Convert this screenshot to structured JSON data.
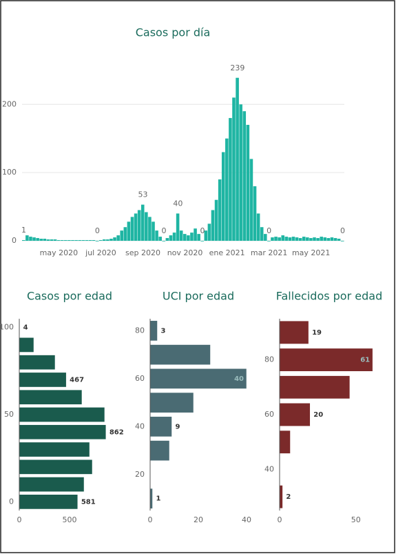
{
  "chart_data": [
    {
      "type": "bar",
      "title": "Casos por día",
      "color": "#1fb5a3",
      "grid": true,
      "categories": [
        null,
        null,
        null,
        null,
        null,
        null,
        null,
        null,
        null,
        null,
        "may 2020",
        null,
        null,
        null,
        null,
        null,
        null,
        null,
        null,
        null,
        null,
        null,
        "jul 2020",
        null,
        null,
        null,
        null,
        null,
        null,
        null,
        null,
        null,
        null,
        null,
        "sep 2020",
        null,
        null,
        null,
        null,
        null,
        null,
        null,
        null,
        null,
        null,
        null,
        "nov 2020",
        null,
        null,
        null,
        null,
        null,
        null,
        null,
        null,
        null,
        null,
        null,
        "ene 2021",
        null,
        null,
        null,
        null,
        null,
        null,
        null,
        null,
        null,
        null,
        null,
        "mar 2021",
        null,
        null,
        null,
        null,
        null,
        null,
        null,
        null,
        null,
        null,
        null,
        "may 2021",
        null,
        null,
        null,
        null,
        null,
        null,
        null,
        null,
        null
      ],
      "values": [
        1,
        8,
        6,
        5,
        4,
        3,
        3,
        2,
        2,
        2,
        1,
        1,
        1,
        1,
        1,
        1,
        1,
        1,
        1,
        1,
        1,
        0,
        1,
        2,
        2,
        3,
        5,
        8,
        15,
        20,
        28,
        35,
        40,
        45,
        53,
        42,
        35,
        28,
        15,
        6,
        0,
        4,
        8,
        12,
        40,
        15,
        10,
        8,
        12,
        18,
        10,
        0,
        15,
        25,
        45,
        60,
        90,
        130,
        150,
        180,
        210,
        239,
        200,
        190,
        170,
        120,
        80,
        40,
        20,
        10,
        0,
        5,
        6,
        5,
        8,
        6,
        5,
        6,
        5,
        4,
        6,
        5,
        4,
        5,
        4,
        6,
        5,
        4,
        5,
        4,
        3,
        0
      ],
      "value_labels": [
        "1",
        null,
        null,
        null,
        null,
        null,
        null,
        null,
        null,
        null,
        null,
        null,
        null,
        null,
        null,
        null,
        null,
        null,
        null,
        null,
        null,
        "0",
        null,
        null,
        null,
        null,
        null,
        null,
        null,
        null,
        null,
        null,
        null,
        null,
        "53",
        null,
        null,
        null,
        null,
        null,
        "0",
        null,
        null,
        null,
        "40",
        null,
        null,
        null,
        null,
        null,
        null,
        "0",
        null,
        null,
        null,
        null,
        null,
        null,
        null,
        null,
        null,
        "239",
        null,
        null,
        null,
        null,
        null,
        null,
        null,
        null,
        "0",
        null,
        null,
        null,
        null,
        null,
        null,
        null,
        null,
        null,
        null,
        null,
        null,
        null,
        null,
        null,
        null,
        null,
        null,
        null,
        null,
        "0"
      ],
      "ylim": [
        0,
        260
      ],
      "yticks": [
        0,
        100,
        200
      ]
    },
    {
      "type": "barh",
      "title": "Casos por edad",
      "color": "#1a5b4d",
      "y": [
        0,
        10,
        20,
        30,
        40,
        50,
        60,
        70,
        80,
        90,
        100
      ],
      "values": [
        581,
        644,
        726,
        699,
        862,
        849,
        623,
        467,
        356,
        144,
        4
      ],
      "value_labels": [
        "581",
        null,
        null,
        null,
        "862",
        null,
        null,
        "467",
        null,
        null,
        "4"
      ],
      "ylim": [
        -5,
        105
      ],
      "yticks": [
        0,
        50,
        100
      ],
      "xlim": [
        0,
        1000
      ],
      "xticks": [
        0,
        500
      ]
    },
    {
      "type": "barh",
      "title": "UCI por edad",
      "color": "#4a6b73",
      "y": [
        10,
        30,
        40,
        50,
        60,
        70,
        80
      ],
      "values": [
        1,
        8,
        9,
        18,
        40,
        25,
        3
      ],
      "value_labels": [
        "1",
        null,
        "9",
        null,
        "40",
        null,
        "3"
      ],
      "ylim": [
        5,
        85
      ],
      "yticks": [
        20,
        40,
        60,
        80
      ],
      "xlim": [
        0,
        40
      ],
      "xticks": [
        0,
        20,
        40
      ]
    },
    {
      "type": "barh",
      "title": "Fallecidos por edad",
      "color": "#7b2a2a",
      "y": [
        30,
        50,
        60,
        70,
        80,
        90
      ],
      "values": [
        2,
        7,
        20,
        46,
        61,
        19
      ],
      "value_labels": [
        "2",
        null,
        "20",
        null,
        "61",
        "19"
      ],
      "ylim": [
        25,
        95
      ],
      "yticks": [
        40,
        60,
        80
      ],
      "xlim": [
        0,
        65
      ],
      "xticks": [
        0,
        50
      ]
    }
  ]
}
